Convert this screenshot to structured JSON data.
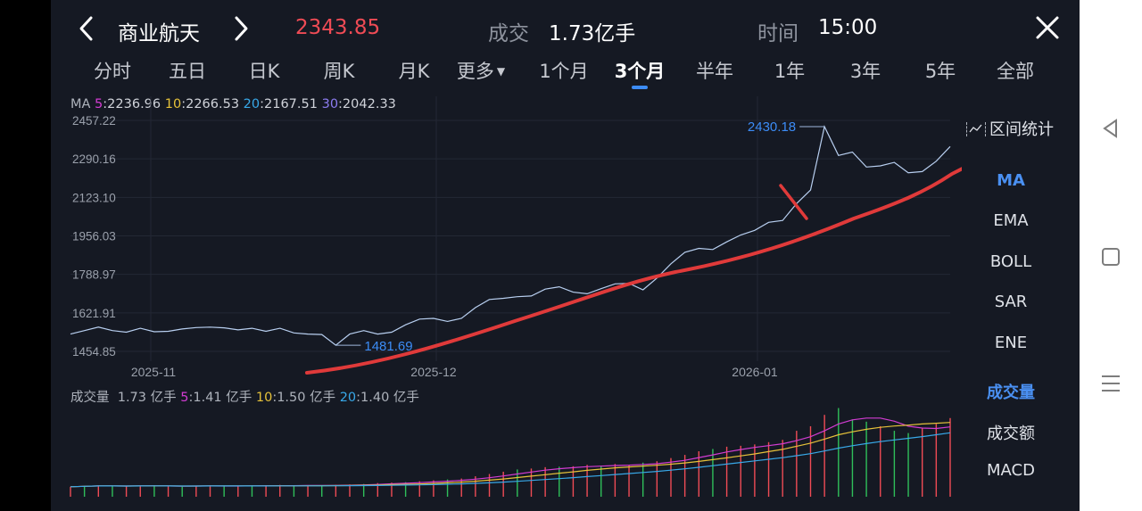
{
  "header": {
    "title": "商业航天",
    "price": "2343.85",
    "volume_label": "成交",
    "volume_value": "1.73亿手",
    "time_label": "时间",
    "time_value": "15:00"
  },
  "tabs": [
    "分时",
    "五日",
    "日K",
    "周K",
    "月K",
    "更多",
    "1个月",
    "3个月",
    "半年",
    "1年",
    "3年",
    "5年",
    "全部"
  ],
  "active_tab": "3个月",
  "ma_legend": {
    "prefix": "MA",
    "ma5": "5:2236.96",
    "ma10": "10:2266.53",
    "ma20": "20:2167.51",
    "ma30": "30:2042.33"
  },
  "volume_legend": {
    "label": "成交量",
    "value": "1.73 亿手",
    "v5": "5:1.41 亿手",
    "v10": "10:1.50 亿手",
    "v20": "20:1.40 亿手"
  },
  "side_panel": {
    "range_stat": "区间统计",
    "items": [
      "MA",
      "EMA",
      "BOLL",
      "SAR",
      "ENE"
    ],
    "active": "MA",
    "volume_items": [
      "成交量",
      "成交额",
      "MACD"
    ],
    "volume_active": "成交量"
  },
  "colors": {
    "up": "#ef4b55",
    "down": "#2fbf5a",
    "ma5": "#d23cd2",
    "ma10": "#e6c23a",
    "ma20": "#38a8e8",
    "ma30": "#8c7cf0",
    "price_line": "#b8cff0",
    "annotation": "#e03a3a",
    "accent": "#4a90f2"
  },
  "chart_data": {
    "type": "line",
    "y_ticks": [
      "2457.22",
      "2290.16",
      "2123.10",
      "1956.03",
      "1788.97",
      "1621.91",
      "1454.85"
    ],
    "ylim": [
      1454.85,
      2457.22
    ],
    "x_ticks": [
      "2025-11",
      "2025-12",
      "2026-01"
    ],
    "high_label": "2430.18",
    "low_label": "1481.69",
    "close_series": [
      1530,
      1545,
      1560,
      1545,
      1538,
      1555,
      1540,
      1542,
      1552,
      1558,
      1560,
      1557,
      1548,
      1555,
      1542,
      1555,
      1535,
      1530,
      1528,
      1481.69,
      1530,
      1545,
      1530,
      1538,
      1570,
      1595,
      1598,
      1585,
      1598,
      1645,
      1680,
      1685,
      1692,
      1695,
      1725,
      1735,
      1712,
      1705,
      1727,
      1748,
      1750,
      1722,
      1773,
      1835,
      1885,
      1902,
      1897,
      1930,
      1960,
      1980,
      2015,
      2023,
      2096,
      2155,
      2430.18,
      2305,
      2320,
      2255,
      2260,
      2275,
      2230,
      2235,
      2280,
      2343.85
    ],
    "volume_series": {
      "values": [
        0.22,
        0.24,
        0.25,
        0.24,
        0.23,
        0.24,
        0.25,
        0.23,
        0.22,
        0.24,
        0.25,
        0.24,
        0.23,
        0.24,
        0.25,
        0.26,
        0.24,
        0.25,
        0.24,
        0.26,
        0.27,
        0.28,
        0.3,
        0.31,
        0.32,
        0.34,
        0.36,
        0.38,
        0.4,
        0.45,
        0.5,
        0.55,
        0.6,
        0.62,
        0.65,
        0.66,
        0.67,
        0.7,
        0.68,
        0.72,
        0.7,
        0.75,
        0.78,
        0.85,
        0.92,
        1.0,
        1.05,
        1.1,
        1.12,
        1.15,
        1.2,
        1.25,
        1.45,
        1.55,
        1.8,
        1.95,
        1.7,
        1.65,
        1.55,
        1.45,
        1.4,
        1.5,
        1.6,
        1.73
      ],
      "up": [
        1,
        0,
        1,
        0,
        1,
        1,
        0,
        1,
        0,
        1,
        1,
        0,
        1,
        0,
        1,
        1,
        0,
        1,
        0,
        1,
        1,
        0,
        1,
        1,
        0,
        1,
        1,
        0,
        1,
        1,
        1,
        1,
        0,
        1,
        1,
        0,
        1,
        1,
        0,
        1,
        1,
        0,
        1,
        1,
        1,
        1,
        0,
        1,
        1,
        1,
        1,
        1,
        1,
        1,
        1,
        0,
        0,
        0,
        1,
        0,
        0,
        1,
        1,
        1
      ]
    }
  }
}
